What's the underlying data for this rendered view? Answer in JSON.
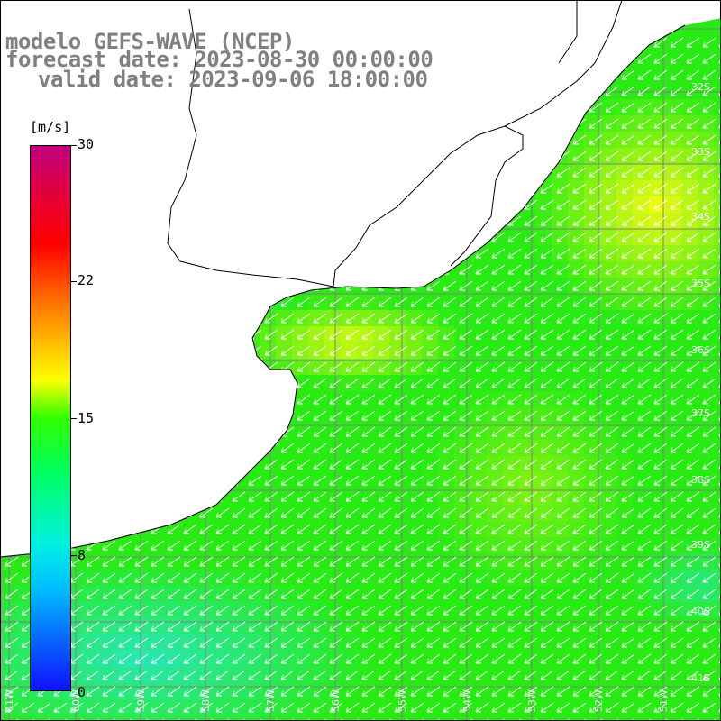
{
  "title": {
    "line1": "modelo GEFS-WAVE (NCEP)",
    "line2": "forecast date: 2023-08-30 00:00:00",
    "line3": "valid date: 2023-09-06 18:00:00"
  },
  "colorbar": {
    "unit": "[m/s]",
    "ticks": [
      "30",
      "22",
      "15",
      "8",
      "0"
    ],
    "range": [
      0,
      30
    ],
    "colors": [
      "#1010ff",
      "#00c0ff",
      "#00ff60",
      "#30ff00",
      "#ffff00",
      "#ff8000",
      "#ff0000",
      "#c00080"
    ]
  },
  "map": {
    "latitude_labels": [
      "32S",
      "33S",
      "34S",
      "35S",
      "36S",
      "37S",
      "38S",
      "39S",
      "40S",
      "41S"
    ],
    "longitude_labels": [
      "61W",
      "60W",
      "59W",
      "58W",
      "57W",
      "56W",
      "55W",
      "54W",
      "53W",
      "52W",
      "51W"
    ],
    "land_color": "#ffffff",
    "coastline_color": "#000000",
    "grid_color": "#808080",
    "wind_arrow_color": "#ffffff",
    "wind_direction": "from northeast"
  }
}
